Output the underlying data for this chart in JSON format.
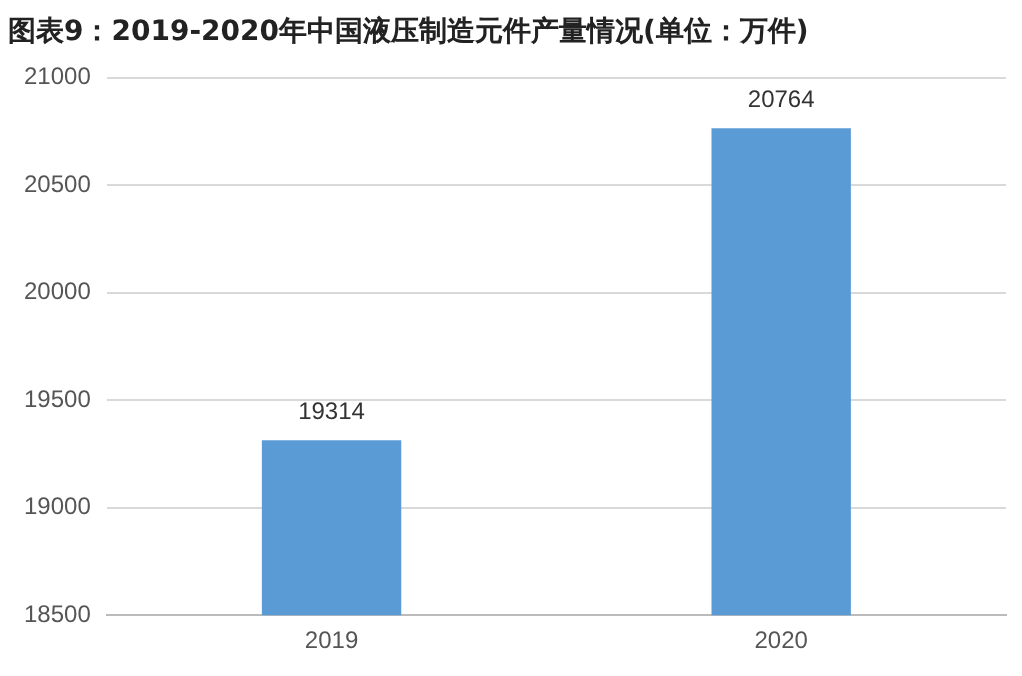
{
  "chart_data": {
    "type": "bar",
    "title": "图表9：2019-2020年中国液压制造元件产量情况(单位：万件)",
    "categories": [
      "2019",
      "2020"
    ],
    "values": [
      19314,
      20764
    ],
    "color": "#5b9bd5",
    "ylim": [
      18500,
      21000
    ],
    "yticks": [
      18500,
      19000,
      19500,
      20000,
      20500,
      21000
    ],
    "grid": "y",
    "data_labels": true
  }
}
